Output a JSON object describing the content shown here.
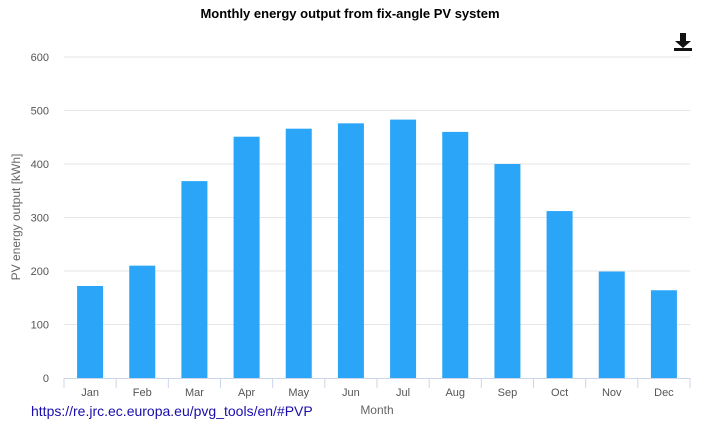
{
  "chart_data": {
    "type": "bar",
    "title": "Monthly energy output from fix-angle PV system",
    "xlabel": "Month",
    "ylabel": "PV energy output [kWh]",
    "categories": [
      "Jan",
      "Feb",
      "Mar",
      "Apr",
      "May",
      "Jun",
      "Jul",
      "Aug",
      "Sep",
      "Oct",
      "Nov",
      "Dec"
    ],
    "values": [
      172,
      210,
      368,
      451,
      466,
      476,
      483,
      460,
      400,
      312,
      199,
      164
    ],
    "ylim": [
      0,
      600
    ],
    "yticks": [
      0,
      100,
      200,
      300,
      400,
      500,
      600
    ],
    "bar_color": "#2aa5f8",
    "grid": true,
    "legend": "none"
  },
  "source": {
    "url_text": "https://re.jrc.ec.europa.eu/pvg_tools/en/#PVP"
  },
  "toolbar": {
    "download_icon": "download-icon"
  }
}
